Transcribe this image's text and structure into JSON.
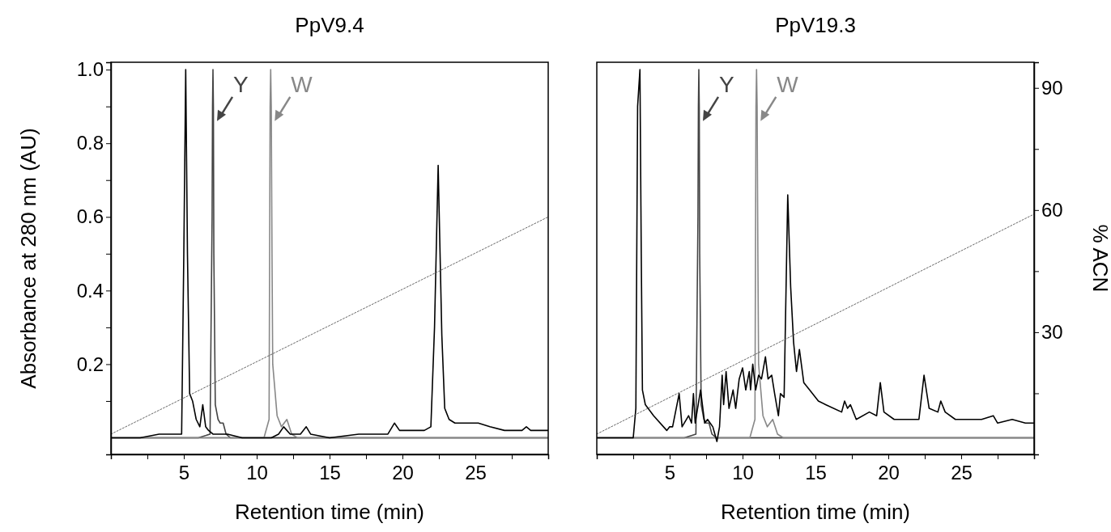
{
  "chart_data": [
    {
      "type": "line",
      "title": "PpV9.4",
      "xlabel": "Retention time (min)",
      "ylabel": "Absorbance at 280 nm (AU)",
      "xlim": [
        0,
        30
      ],
      "ylim": [
        -0.045,
        1.02
      ],
      "xticks": [
        {
          "value": 2.5,
          "label": null
        },
        5,
        {
          "value": 7.5,
          "label": null
        },
        10,
        {
          "value": 12.5,
          "label": null
        },
        15,
        {
          "value": 17.5,
          "label": null
        },
        20,
        {
          "value": 22.5,
          "label": null
        },
        25,
        {
          "value": 27.5,
          "label": null
        }
      ],
      "yticks": [
        {
          "value": 0.1,
          "label": null
        },
        0.2,
        {
          "value": 0.3,
          "label": null
        },
        0.4,
        {
          "value": 0.5,
          "label": null
        },
        0.6,
        {
          "value": 0.7,
          "label": null
        },
        0.8,
        {
          "value": 0.9,
          "label": null
        },
        {
          "value": 1,
          "label": "1.0"
        }
      ],
      "ref_lines": [
        {
          "axis": "y",
          "value": 0,
          "color": "#555555"
        }
      ],
      "annotations": [
        "Y",
        "W"
      ],
      "series": [
        {
          "color": "#444444",
          "x": [
            0,
            6,
            6.8,
            6.94,
            6.97,
            7.0,
            7.03,
            7.06,
            7.16,
            7.35,
            7.5,
            7.7,
            7.9,
            8.2,
            9,
            30
          ],
          "values": [
            0,
            0,
            0.01,
            0.6,
            0.9,
            1.0,
            0.9,
            0.5,
            0.09,
            0.05,
            0.04,
            0.04,
            0.01,
            0,
            0,
            0
          ]
        },
        {
          "color": "#888888",
          "x": [
            0,
            10.5,
            10.85,
            10.92,
            10.96,
            11.0,
            11.05,
            11.1,
            11.4,
            11.7,
            12.07,
            12.4,
            12.8,
            30
          ],
          "values": [
            0,
            0,
            0.05,
            0.9,
            1.0,
            0.9,
            0.5,
            0.2,
            0.06,
            0.03,
            0.05,
            0.01,
            0,
            0
          ]
        },
        {
          "color": "#000000",
          "x": [
            0,
            2,
            3.3,
            4.5,
            4.85,
            5.0,
            5.13,
            5.25,
            5.4,
            5.6,
            5.85,
            6.1,
            6.3,
            6.5,
            6.7,
            7.0,
            7.5,
            8.0,
            9,
            10,
            11,
            11.5,
            11.85,
            12.3,
            13.0,
            13.4,
            13.7,
            15,
            17,
            18.5,
            19.0,
            19.45,
            19.8,
            20.5,
            21.5,
            21.95,
            22.2,
            22.45,
            22.7,
            22.9,
            23.2,
            23.6,
            24.2,
            24.85,
            25.2,
            26,
            27,
            28.2,
            28.5,
            28.8,
            29.4,
            30
          ],
          "values": [
            0,
            0,
            0.01,
            0.01,
            0.01,
            0.5,
            1.0,
            0.5,
            0.12,
            0.1,
            0.05,
            0.03,
            0.09,
            0.03,
            0.02,
            0.01,
            0.01,
            0.01,
            0,
            0,
            0,
            0.01,
            0.03,
            0.01,
            0.01,
            0.03,
            0.01,
            0,
            0.01,
            0.01,
            0.01,
            0.04,
            0.02,
            0.02,
            0.02,
            0.03,
            0.3,
            0.74,
            0.28,
            0.08,
            0.05,
            0.04,
            0.04,
            0.04,
            0.04,
            0.03,
            0.02,
            0.02,
            0.03,
            0.02,
            0.02,
            0.02
          ]
        },
        {
          "color": "#555555",
          "line_style": "dotted",
          "x": [
            0,
            30
          ],
          "values": [
            0.01,
            0.6
          ]
        }
      ]
    },
    {
      "type": "line",
      "title": "PpV19.3",
      "xlabel": "Retention time (min)",
      "y2label": "% ACN",
      "xlim": [
        0,
        30
      ],
      "ylim": [
        -0.045,
        1.02
      ],
      "y2lim": [
        0,
        96.3
      ],
      "xticks": [
        {
          "value": 2.5,
          "label": null
        },
        5,
        {
          "value": 7.5,
          "label": null
        },
        10,
        {
          "value": 12.5,
          "label": null
        },
        15,
        {
          "value": 17.5,
          "label": null
        },
        20,
        {
          "value": 22.5,
          "label": null
        },
        25,
        {
          "value": 27.5,
          "label": null
        }
      ],
      "y2ticks": [
        {
          "value": 15,
          "label": null
        },
        30,
        {
          "value": 45,
          "label": null
        },
        60,
        {
          "value": 75,
          "label": null
        },
        90
      ],
      "ref_lines": [
        {
          "axis": "y",
          "value": 0,
          "color": "#555555"
        }
      ],
      "annotations": [
        "Y",
        "W"
      ],
      "series": [
        {
          "color": "#444444",
          "x": [
            0,
            6,
            6.8,
            6.94,
            6.97,
            7.0,
            7.03,
            7.06,
            7.16,
            7.35,
            7.5,
            7.7,
            7.9,
            8.2,
            9,
            30
          ],
          "values": [
            0,
            0,
            0.01,
            0.6,
            0.9,
            1.0,
            0.9,
            0.5,
            0.09,
            0.05,
            0.04,
            0.04,
            0.01,
            0,
            0,
            0
          ]
        },
        {
          "color": "#888888",
          "x": [
            0,
            10.5,
            10.85,
            10.92,
            10.96,
            11.0,
            11.05,
            11.1,
            11.4,
            11.7,
            12.07,
            12.4,
            12.8,
            30
          ],
          "values": [
            0,
            0,
            0.05,
            0.9,
            1.0,
            0.9,
            0.5,
            0.2,
            0.06,
            0.03,
            0.05,
            0.01,
            0,
            0
          ]
        },
        {
          "color": "#000000",
          "x": [
            0,
            2.5,
            2.68,
            2.8,
            2.96,
            3.05,
            3.13,
            3.33,
            3.9,
            4.8,
            5.0,
            5.2,
            5.65,
            5.85,
            6.3,
            6.5,
            6.63,
            6.75,
            7.12,
            7.4,
            7.6,
            7.96,
            8.24,
            8.42,
            8.6,
            8.7,
            8.87,
            9.07,
            9.35,
            9.53,
            9.77,
            10.0,
            10.22,
            10.46,
            10.55,
            10.7,
            10.9,
            11.1,
            11.3,
            11.57,
            11.75,
            12.0,
            12.2,
            12.46,
            12.6,
            12.85,
            13.1,
            13.3,
            13.5,
            13.7,
            13.9,
            14.2,
            14.6,
            15.2,
            15.7,
            16.8,
            17.0,
            17.2,
            17.4,
            17.8,
            18.7,
            19.2,
            19.45,
            19.7,
            20.4,
            22.1,
            22.45,
            22.8,
            23.4,
            23.6,
            23.9,
            24.6,
            26.4,
            27.2,
            27.5,
            28.5,
            29.4,
            30
          ],
          "values": [
            0,
            0,
            0.08,
            0.9,
            1.0,
            0.5,
            0.13,
            0.09,
            0.06,
            0.02,
            0.03,
            0.03,
            0.12,
            0.03,
            0.06,
            0.04,
            0.12,
            0.04,
            0.13,
            0.04,
            0.05,
            0.03,
            -0.01,
            0.03,
            0.17,
            0.09,
            0.18,
            0.08,
            0.13,
            0.08,
            0.16,
            0.19,
            0.13,
            0.18,
            0.13,
            0.2,
            0.13,
            0.17,
            0.16,
            0.22,
            0.16,
            0.17,
            0.12,
            0.06,
            0.12,
            0.11,
            0.66,
            0.41,
            0.26,
            0.18,
            0.24,
            0.15,
            0.13,
            0.1,
            0.09,
            0.07,
            0.1,
            0.08,
            0.09,
            0.05,
            0.07,
            0.06,
            0.15,
            0.07,
            0.05,
            0.05,
            0.17,
            0.08,
            0.07,
            0.1,
            0.07,
            0.05,
            0.05,
            0.06,
            0.04,
            0.05,
            0.04,
            0.04
          ]
        },
        {
          "axis": "y2",
          "color": "#555555",
          "line_style": "dotted",
          "x": [
            0,
            30
          ],
          "values": [
            5,
            59
          ]
        }
      ]
    }
  ]
}
